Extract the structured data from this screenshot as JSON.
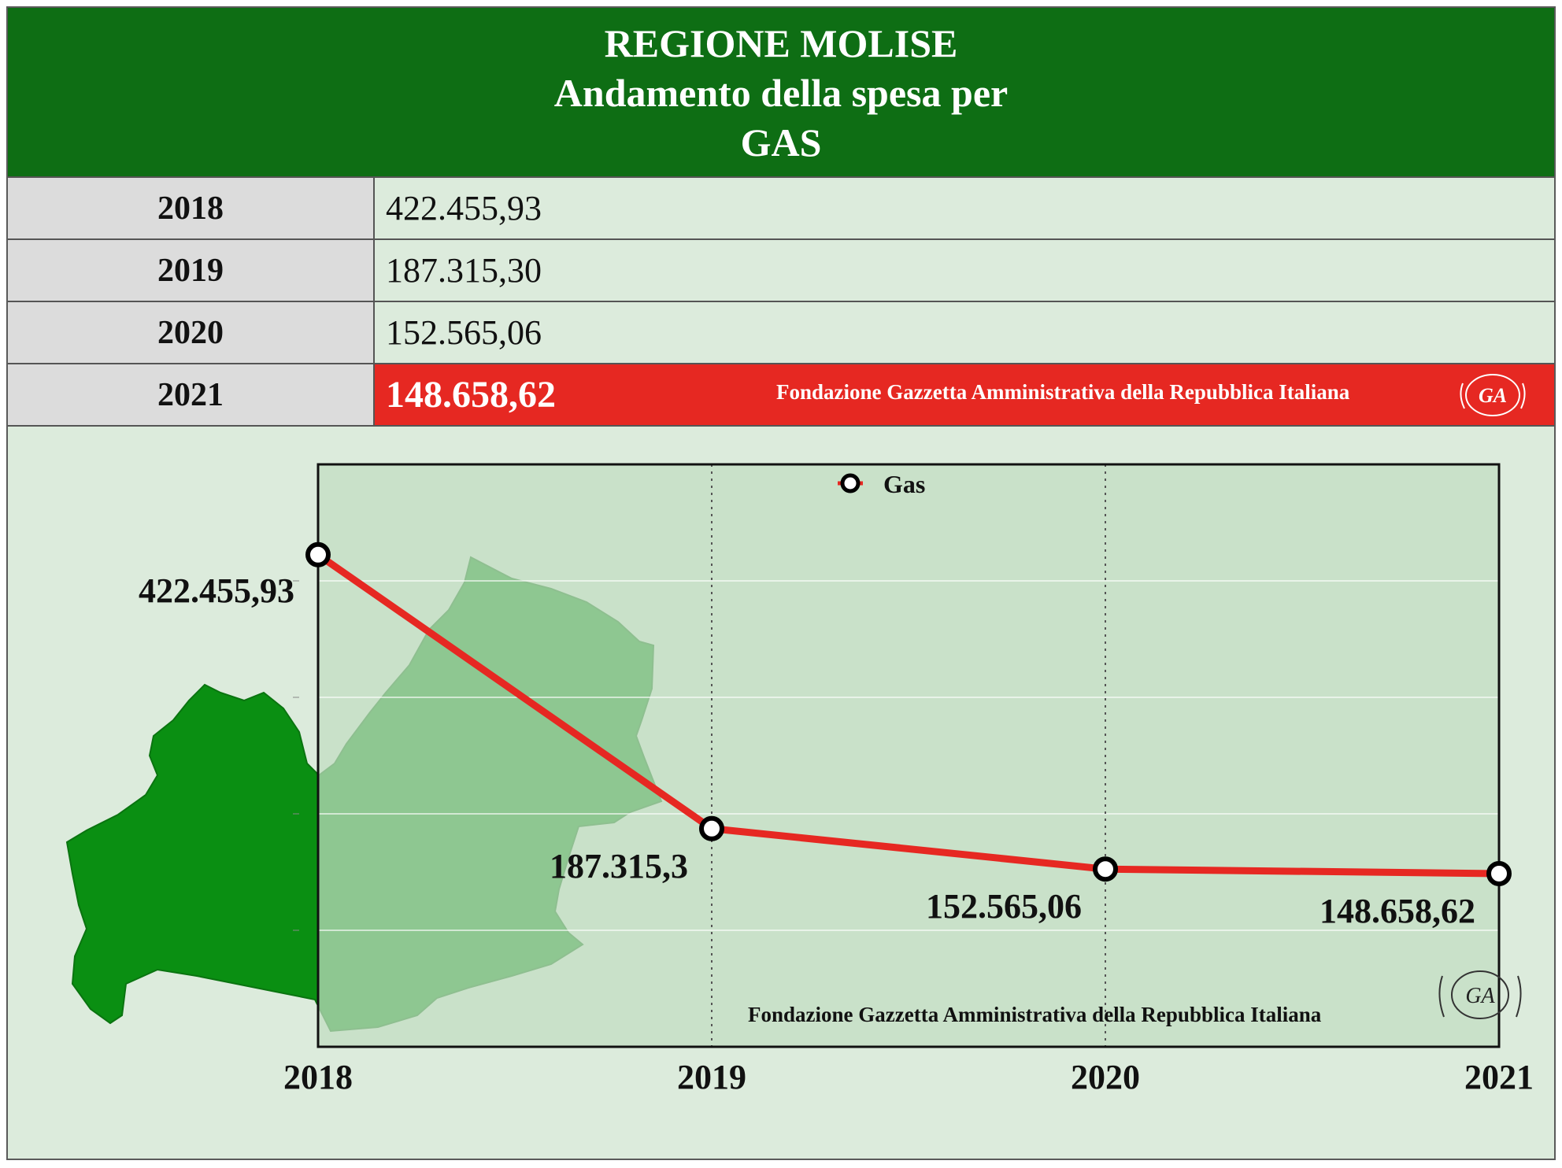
{
  "header": {
    "line1": "REGIONE MOLISE",
    "line2": "Andamento della spesa per",
    "line3": "GAS"
  },
  "table": {
    "rows": [
      {
        "year": "2018",
        "value": "422.455,93"
      },
      {
        "year": "2019",
        "value": "187.315,30"
      },
      {
        "year": "2020",
        "value": "152.565,06"
      },
      {
        "year": "2021",
        "value": "148.658,62"
      }
    ],
    "highlight_credit": "Fondazione Gazzetta Amministrativa della Repubblica Italiana"
  },
  "logo_text": "GA",
  "chart_credit": "Fondazione Gazzetta Amministrativa della Repubblica Italiana",
  "colors": {
    "header_bg": "#0e6e14",
    "highlight_bg": "#e62822",
    "line": "#e62822",
    "plot_bg": "#c2dcc2",
    "region_map": "#0a8f12"
  },
  "chart_data": {
    "type": "line",
    "categories": [
      "2018",
      "2019",
      "2020",
      "2021"
    ],
    "series": [
      {
        "name": "Gas",
        "values": [
          422455.93,
          187315.3,
          152565.06,
          148658.62
        ],
        "color": "#e62822"
      }
    ],
    "data_labels": [
      "422.455,93",
      "187.315,3",
      "152.565,06",
      "148.658,62"
    ],
    "ylim": [
      0,
      500000
    ],
    "grid": "horizontal lines, dotted vertical lines at 2019 and 2020",
    "legend": "top-center",
    "title": "",
    "xlabel": "",
    "ylabel": ""
  }
}
